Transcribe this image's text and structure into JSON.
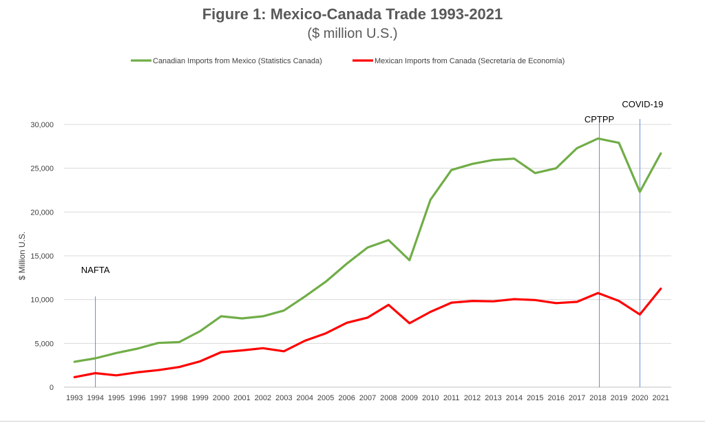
{
  "chart_data": {
    "type": "line",
    "title": "Figure 1: Mexico-Canada Trade 1993-2021",
    "subtitle": "($ million U.S.)",
    "xlabel": "",
    "ylabel": "$ Million U.S.",
    "ylim": [
      0,
      30000
    ],
    "y_ticks": [
      "0",
      "5,000",
      "10,000",
      "15,000",
      "20,000",
      "25,000",
      "30,000"
    ],
    "grid": true,
    "legend_position": "top",
    "categories": [
      "1993",
      "1994",
      "1995",
      "1996",
      "1997",
      "1998",
      "1999",
      "2000",
      "2001",
      "2002",
      "2003",
      "2004",
      "2005",
      "2006",
      "2007",
      "2008",
      "2009",
      "2010",
      "2011",
      "2012",
      "2013",
      "2014",
      "2015",
      "2016",
      "2017",
      "2018",
      "2019",
      "2020",
      "2021"
    ],
    "series": [
      {
        "name": "Canadian Imports from Mexico (Statistics Canada)",
        "color": "#70ad47",
        "values": [
          2900,
          3300,
          3900,
          4400,
          5050,
          5150,
          6400,
          8100,
          7850,
          8100,
          8750,
          10350,
          12050,
          14100,
          15950,
          16800,
          14500,
          21400,
          24800,
          25500,
          25950,
          26100,
          24450,
          25000,
          27300,
          28400,
          27900,
          22300,
          26700
        ]
      },
      {
        "name": "Mexican Imports from Canada (Secretaría de Economía)",
        "color": "#ff0000",
        "values": [
          1150,
          1600,
          1350,
          1700,
          1950,
          2300,
          2950,
          4000,
          4200,
          4450,
          4100,
          5300,
          6150,
          7350,
          7950,
          9400,
          7300,
          8600,
          9650,
          9850,
          9800,
          10050,
          9950,
          9600,
          9750,
          10750,
          9850,
          8300,
          11250
        ]
      }
    ],
    "annotations": [
      {
        "label": "NAFTA",
        "x": "1994"
      },
      {
        "label": "CPTPP",
        "x": "2018"
      },
      {
        "label": "COVID-19",
        "x": "2020"
      }
    ]
  }
}
